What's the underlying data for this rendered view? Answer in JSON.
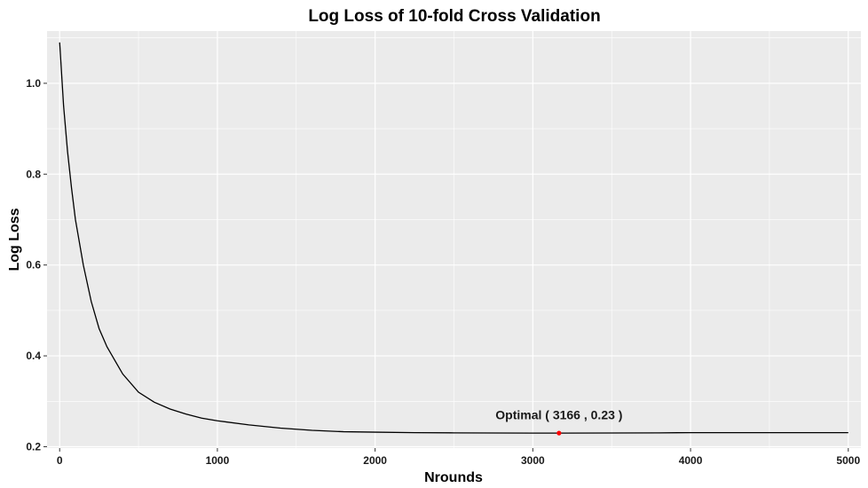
{
  "chart_data": {
    "type": "line",
    "title": "Log Loss of 10-fold Cross Validation",
    "xlabel": "Nrounds",
    "ylabel": "Log Loss",
    "xlim": [
      -80,
      5080
    ],
    "ylim": [
      0.197,
      1.115
    ],
    "x_ticks": [
      0,
      1000,
      2000,
      3000,
      4000,
      5000
    ],
    "y_ticks": [
      0.2,
      0.4,
      0.6,
      0.8,
      1.0
    ],
    "x_tick_labels": [
      "0",
      "1000",
      "2000",
      "3000",
      "4000",
      "5000"
    ],
    "y_tick_labels": [
      "0.2",
      "0.4",
      "0.6",
      "0.8",
      "1.0"
    ],
    "grid": true,
    "background": "#ebebeb",
    "gridline_color": "#ffffff",
    "series": [
      {
        "color": "#000000",
        "x": [
          0,
          25,
          50,
          75,
          100,
          150,
          200,
          250,
          300,
          400,
          500,
          600,
          700,
          800,
          900,
          1000,
          1200,
          1400,
          1600,
          1800,
          2000,
          2250,
          2500,
          2750,
          3000,
          3166,
          3500,
          3800,
          4000,
          4500,
          5000
        ],
        "y": [
          1.09,
          0.95,
          0.85,
          0.77,
          0.7,
          0.6,
          0.52,
          0.46,
          0.42,
          0.36,
          0.32,
          0.298,
          0.283,
          0.272,
          0.263,
          0.257,
          0.248,
          0.241,
          0.236,
          0.233,
          0.232,
          0.231,
          0.2305,
          0.2302,
          0.23,
          0.23,
          0.2302,
          0.2305,
          0.231,
          0.231,
          0.231
        ]
      }
    ],
    "optimal_point": {
      "x": 3166,
      "y": 0.23,
      "color": "#ff0000"
    },
    "annotation": {
      "text": "Optimal ( 3166 , 0.23 )",
      "x": 3166,
      "y": 0.27
    }
  }
}
